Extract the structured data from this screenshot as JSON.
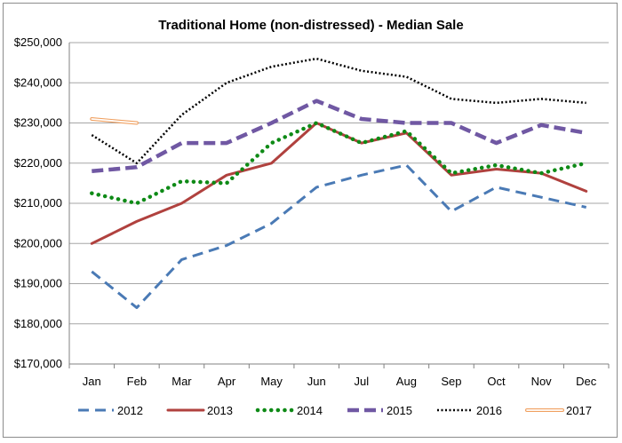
{
  "chart_data": {
    "type": "line",
    "title": "Traditional Home (non-distressed) - Median Sale",
    "xlabel": "",
    "ylabel": "",
    "categories": [
      "Jan",
      "Feb",
      "Mar",
      "Apr",
      "May",
      "Jun",
      "Jul",
      "Aug",
      "Sep",
      "Oct",
      "Nov",
      "Dec"
    ],
    "ylim": [
      170000,
      250000
    ],
    "yticks": [
      170000,
      180000,
      190000,
      200000,
      210000,
      220000,
      230000,
      240000,
      250000
    ],
    "ytick_labels": [
      "$170,000",
      "$180,000",
      "$190,000",
      "$200,000",
      "$210,000",
      "$220,000",
      "$230,000",
      "$240,000",
      "$250,000"
    ],
    "grid": true,
    "legend_position": "bottom",
    "series": [
      {
        "name": "2012",
        "color": "#4a7ab5",
        "style": "dashed",
        "values": [
          193000,
          184000,
          196000,
          199500,
          205000,
          214000,
          217000,
          219500,
          208000,
          214000,
          211500,
          209000
        ]
      },
      {
        "name": "2013",
        "color": "#b0413e",
        "style": "solid",
        "values": [
          200000,
          205500,
          210000,
          217000,
          220000,
          230000,
          225000,
          227500,
          217000,
          218500,
          217500,
          213000
        ]
      },
      {
        "name": "2014",
        "color": "#0e8a16",
        "style": "dotted-round",
        "values": [
          212500,
          210000,
          215500,
          215000,
          225000,
          230000,
          225000,
          228000,
          217500,
          219500,
          217500,
          220000
        ]
      },
      {
        "name": "2015",
        "color": "#7058a3",
        "style": "dashed-thick",
        "values": [
          218000,
          219000,
          225000,
          225000,
          230000,
          235500,
          231000,
          230000,
          230000,
          225000,
          229500,
          227500
        ]
      },
      {
        "name": "2016",
        "color": "#000000",
        "style": "dotted",
        "values": [
          227000,
          220000,
          232000,
          240000,
          244000,
          246000,
          243000,
          241500,
          236000,
          235000,
          236000,
          235000
        ]
      },
      {
        "name": "2017",
        "color": "#f0a060",
        "style": "double",
        "values": [
          231000,
          230000,
          null,
          null,
          null,
          null,
          null,
          null,
          null,
          null,
          null,
          null
        ]
      }
    ]
  }
}
